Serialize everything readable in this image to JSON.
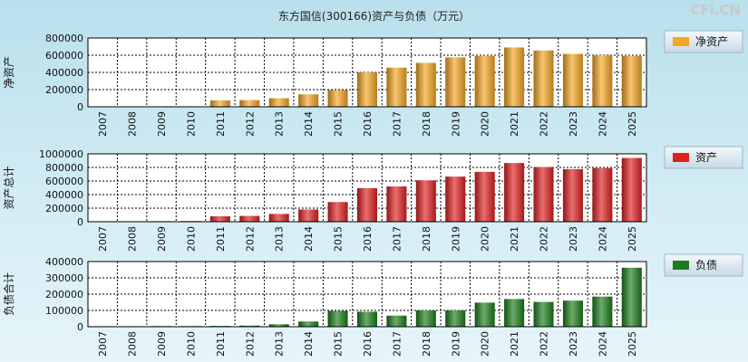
{
  "title": "东方国信(300166)资产与负债（万元）",
  "brand": "CFi.CN",
  "chart_data": [
    {
      "type": "bar",
      "ylabel": "净资产",
      "legend": "净资产",
      "color": "#f5a623",
      "ylim": [
        0,
        800000
      ],
      "yticks": [
        0,
        200000,
        400000,
        600000,
        800000
      ],
      "categories": [
        "2007",
        "2008",
        "2009",
        "2010",
        "2011",
        "2012",
        "2013",
        "2014",
        "2015",
        "2016",
        "2017",
        "2018",
        "2019",
        "2020",
        "2021",
        "2022",
        "2023",
        "2024",
        "2025"
      ],
      "values": [
        2000,
        3000,
        4000,
        5000,
        75000,
        78000,
        100000,
        145000,
        195000,
        400000,
        455000,
        510000,
        575000,
        590000,
        690000,
        655000,
        615000,
        600000,
        590000
      ]
    },
    {
      "type": "bar",
      "ylabel": "资产总计",
      "legend": "资产",
      "color": "#e02020",
      "ylim": [
        0,
        1000000
      ],
      "yticks": [
        0,
        200000,
        400000,
        600000,
        800000,
        1000000
      ],
      "categories": [
        "2007",
        "2008",
        "2009",
        "2010",
        "2011",
        "2012",
        "2013",
        "2014",
        "2015",
        "2016",
        "2017",
        "2018",
        "2019",
        "2020",
        "2021",
        "2022",
        "2023",
        "2024",
        "2025"
      ],
      "values": [
        5000,
        6000,
        8000,
        10000,
        80000,
        85000,
        115000,
        180000,
        290000,
        495000,
        520000,
        610000,
        665000,
        735000,
        865000,
        805000,
        775000,
        790000,
        940000
      ]
    },
    {
      "type": "bar",
      "ylabel": "负债合计",
      "legend": "负债",
      "color": "#1a7d1a",
      "ylim": [
        0,
        400000
      ],
      "yticks": [
        0,
        100000,
        200000,
        300000,
        400000
      ],
      "categories": [
        "2007",
        "2008",
        "2009",
        "2010",
        "2011",
        "2012",
        "2013",
        "2014",
        "2015",
        "2016",
        "2017",
        "2018",
        "2019",
        "2020",
        "2021",
        "2022",
        "2023",
        "2024",
        "2025"
      ],
      "values": [
        3000,
        3000,
        4000,
        4000,
        5000,
        7000,
        15000,
        32000,
        97000,
        92000,
        68000,
        100000,
        100000,
        148000,
        170000,
        152000,
        160000,
        185000,
        362000
      ]
    }
  ]
}
